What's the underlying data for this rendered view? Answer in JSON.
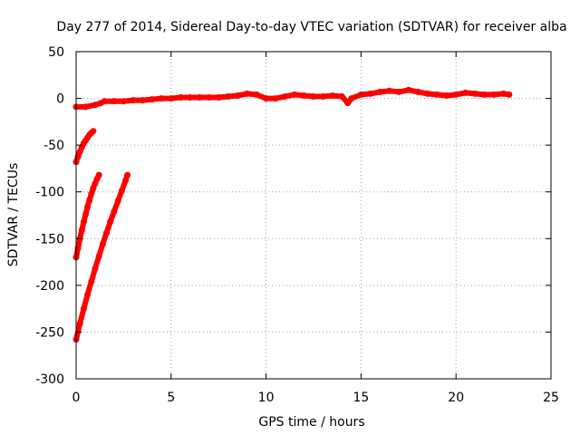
{
  "chart_data": {
    "type": "scatter",
    "title": "Day 277 of 2014, Sidereal Day-to-day VTEC variation (SDTVAR) for receiver alba",
    "xlabel": "GPS time / hours",
    "ylabel": "SDTVAR / TECUs",
    "xlim": [
      0,
      25
    ],
    "ylim": [
      -300,
      50
    ],
    "xticks": [
      0,
      5,
      10,
      15,
      20,
      25
    ],
    "yticks": [
      50,
      0,
      -50,
      -100,
      -150,
      -200,
      -250,
      -300
    ],
    "grid": true,
    "legend": "none",
    "series": [
      {
        "color": "#ff0000",
        "points": [
          [
            0.0,
            -9
          ],
          [
            0.5,
            -9
          ],
          [
            1.0,
            -7
          ],
          [
            1.3,
            -5
          ],
          [
            1.5,
            -3
          ],
          [
            2.0,
            -3
          ],
          [
            2.5,
            -3
          ],
          [
            3.0,
            -2
          ],
          [
            3.5,
            -2
          ],
          [
            4.0,
            -1
          ],
          [
            4.5,
            0
          ],
          [
            5.0,
            0
          ],
          [
            5.5,
            1
          ],
          [
            6.0,
            1
          ],
          [
            6.5,
            1
          ],
          [
            7.0,
            1
          ],
          [
            7.5,
            1
          ],
          [
            8.0,
            2
          ],
          [
            8.5,
            3
          ],
          [
            9.0,
            5
          ],
          [
            9.5,
            4
          ],
          [
            10.0,
            0
          ],
          [
            10.5,
            0
          ],
          [
            11.0,
            2
          ],
          [
            11.5,
            4
          ],
          [
            12.0,
            3
          ],
          [
            12.5,
            2
          ],
          [
            13.0,
            2
          ],
          [
            13.5,
            3
          ],
          [
            14.0,
            2
          ],
          [
            14.3,
            -5
          ],
          [
            14.5,
            0
          ],
          [
            15.0,
            4
          ],
          [
            15.5,
            5
          ],
          [
            16.0,
            7
          ],
          [
            16.5,
            8
          ],
          [
            17.0,
            7
          ],
          [
            17.5,
            9
          ],
          [
            18.0,
            7
          ],
          [
            18.5,
            5
          ],
          [
            19.0,
            4
          ],
          [
            19.5,
            3
          ],
          [
            20.0,
            4
          ],
          [
            20.5,
            6
          ],
          [
            21.0,
            5
          ],
          [
            21.5,
            4
          ],
          [
            22.0,
            4
          ],
          [
            22.5,
            5
          ],
          [
            22.8,
            4
          ]
        ]
      },
      {
        "color": "#ff0000",
        "points": [
          [
            0.0,
            -68
          ],
          [
            0.1,
            -62
          ],
          [
            0.2,
            -57
          ],
          [
            0.3,
            -52
          ],
          [
            0.4,
            -48
          ],
          [
            0.5,
            -45
          ],
          [
            0.6,
            -42
          ],
          [
            0.7,
            -39
          ],
          [
            0.8,
            -37
          ],
          [
            0.9,
            -35
          ]
        ]
      },
      {
        "color": "#ff0000",
        "points": [
          [
            0.0,
            -170
          ],
          [
            0.1,
            -160
          ],
          [
            0.2,
            -150
          ],
          [
            0.3,
            -141
          ],
          [
            0.4,
            -132
          ],
          [
            0.5,
            -124
          ],
          [
            0.6,
            -116
          ],
          [
            0.7,
            -109
          ],
          [
            0.8,
            -102
          ],
          [
            0.9,
            -96
          ],
          [
            1.0,
            -91
          ],
          [
            1.1,
            -86
          ],
          [
            1.2,
            -82
          ]
        ]
      },
      {
        "color": "#ff0000",
        "points": [
          [
            0.0,
            -258
          ],
          [
            0.2,
            -241
          ],
          [
            0.4,
            -225
          ],
          [
            0.6,
            -210
          ],
          [
            0.8,
            -196
          ],
          [
            1.0,
            -182
          ],
          [
            1.2,
            -169
          ],
          [
            1.4,
            -156
          ],
          [
            1.6,
            -144
          ],
          [
            1.8,
            -132
          ],
          [
            2.0,
            -121
          ],
          [
            2.2,
            -110
          ],
          [
            2.4,
            -99
          ],
          [
            2.6,
            -88
          ],
          [
            2.7,
            -82
          ]
        ]
      }
    ]
  }
}
